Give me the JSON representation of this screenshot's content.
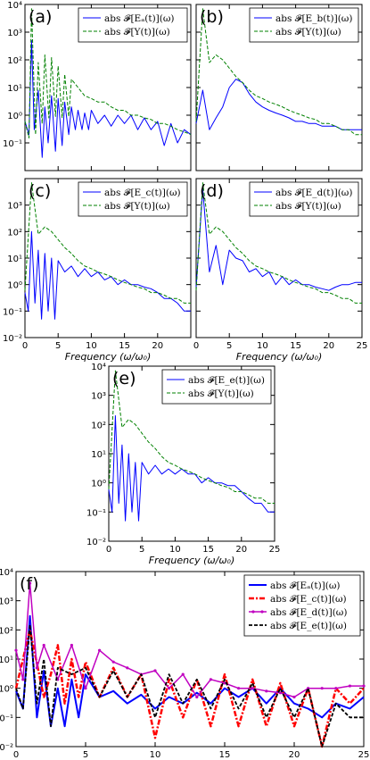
{
  "figure": {
    "xlabel_text": "Frequency",
    "xlabel_math": "(ω/ω₀)"
  },
  "colors": {
    "blue": "#0000ff",
    "green": "#008000",
    "red": "#ff0000",
    "magenta": "#c000c0",
    "black": "#000000"
  },
  "chart_data": [
    {
      "id": "a",
      "type": "line",
      "panel_label": "(a)",
      "xlabel": "",
      "y_scale": "log",
      "ylim": [
        0.01,
        10000
      ],
      "xlim": [
        0,
        25
      ],
      "y_ticks": [
        "10⁴",
        "10³",
        "10²",
        "10¹",
        "10⁰",
        "10⁻¹"
      ],
      "x_ticks": [],
      "legend": [
        "abs 𝓕[Eₐ(t)](ω)",
        "abs 𝓕[Y(t)](ω)"
      ],
      "series": [
        {
          "name": "abs 𝓕[Eₐ(t)](ω)",
          "style": "blue-solid",
          "x": [
            0,
            0.6,
            1,
            1.4,
            2,
            2.6,
            3,
            3.5,
            4,
            4.6,
            5,
            5.6,
            6,
            6.6,
            7,
            7.6,
            8,
            8.6,
            9,
            9.6,
            10,
            11,
            12,
            13,
            14,
            15,
            16,
            17,
            18,
            19,
            20,
            21,
            22,
            23,
            24,
            25
          ],
          "y": [
            0.6,
            0.2,
            500,
            0.3,
            8,
            0.03,
            2,
            0.1,
            5,
            0.05,
            4,
            0.08,
            3,
            0.2,
            2,
            0.3,
            1.5,
            0.3,
            1.2,
            0.3,
            1.5,
            0.5,
            1,
            0.4,
            1,
            0.5,
            1,
            0.3,
            0.8,
            0.3,
            0.6,
            0.08,
            0.5,
            0.1,
            0.3,
            0.2
          ]
        },
        {
          "name": "abs 𝓕[Y(t)](ω)",
          "style": "green-dashed",
          "x": [
            0,
            0.6,
            1,
            1.6,
            2,
            2.6,
            3,
            3.6,
            4,
            4.6,
            5,
            5.6,
            6,
            6.6,
            7,
            8,
            9,
            10,
            11,
            12,
            13,
            14,
            15,
            16,
            17,
            18,
            19,
            20,
            21,
            22,
            23,
            24,
            25
          ],
          "y": [
            0.6,
            0.15,
            7000,
            0.2,
            80,
            0.5,
            150,
            0.8,
            120,
            0.9,
            60,
            0.8,
            30,
            0.9,
            20,
            10,
            5,
            4,
            3,
            3,
            2,
            1.5,
            1.5,
            1,
            1,
            0.8,
            0.7,
            0.5,
            0.5,
            0.4,
            0.3,
            0.25,
            0.2
          ]
        }
      ]
    },
    {
      "id": "b",
      "type": "line",
      "panel_label": "(b)",
      "xlabel": "",
      "y_scale": "log",
      "ylim": [
        0.01,
        10000
      ],
      "xlim": [
        0,
        25
      ],
      "y_ticks": [],
      "x_ticks": [],
      "legend": [
        "abs 𝓕[E_b(t)](ω)",
        "abs 𝓕[Y(t)](ω)"
      ],
      "series": [
        {
          "name": "abs 𝓕[E_b(t)](ω)",
          "style": "blue-solid",
          "x": [
            0,
            1,
            2,
            3,
            4,
            5,
            6,
            7,
            8,
            9,
            10,
            11,
            12,
            13,
            14,
            15,
            16,
            17,
            18,
            19,
            20,
            21,
            22,
            23,
            24,
            25
          ],
          "y": [
            0.5,
            8,
            0.3,
            0.8,
            2,
            10,
            20,
            15,
            6,
            3,
            2,
            1.5,
            1.2,
            1,
            0.8,
            0.6,
            0.6,
            0.5,
            0.5,
            0.4,
            0.4,
            0.4,
            0.3,
            0.3,
            0.3,
            0.3
          ]
        },
        {
          "name": "abs 𝓕[Y(t)](ω)",
          "style": "green-dashed",
          "x": [
            0,
            1,
            2,
            3,
            4,
            5,
            6,
            7,
            8,
            9,
            10,
            11,
            12,
            13,
            14,
            15,
            16,
            17,
            18,
            19,
            20,
            21,
            22,
            23,
            24,
            25
          ],
          "y": [
            0.6,
            7000,
            80,
            150,
            100,
            50,
            25,
            15,
            8,
            5,
            4,
            3,
            2.5,
            2,
            1.5,
            1.2,
            1,
            0.8,
            0.7,
            0.5,
            0.5,
            0.4,
            0.3,
            0.3,
            0.2,
            0.2
          ]
        }
      ]
    },
    {
      "id": "c",
      "type": "line",
      "panel_label": "(c)",
      "xlabel": "Frequency (ω/ω₀)",
      "y_scale": "log",
      "ylim": [
        0.01,
        10000
      ],
      "xlim": [
        0,
        25
      ],
      "y_ticks": [
        "10³",
        "10²",
        "10¹",
        "10⁰",
        "10⁻¹",
        "10⁻²"
      ],
      "x_ticks": [
        "0",
        "5",
        "10",
        "15",
        "20"
      ],
      "legend": [
        "abs 𝓕[E_c(t)](ω)",
        "abs 𝓕[Y(t)](ω)"
      ],
      "series": [
        {
          "name": "abs 𝓕[E_c(t)](ω)",
          "style": "blue-solid",
          "x": [
            0,
            0.5,
            1,
            1.5,
            2,
            2.5,
            3,
            3.5,
            4,
            4.5,
            5,
            6,
            7,
            8,
            9,
            10,
            11,
            12,
            13,
            14,
            15,
            16,
            17,
            18,
            19,
            20,
            21,
            22,
            23,
            24,
            25
          ],
          "y": [
            0.5,
            0.1,
            100,
            0.2,
            20,
            0.05,
            15,
            0.1,
            10,
            0.05,
            8,
            3,
            5,
            2,
            4,
            2,
            3,
            1.5,
            2,
            1,
            1.5,
            1,
            1,
            0.8,
            0.7,
            0.5,
            0.3,
            0.3,
            0.2,
            0.1,
            0.1
          ]
        },
        {
          "name": "abs 𝓕[Y(t)](ω)",
          "style": "green-dashed",
          "x": [
            0,
            1,
            2,
            3,
            4,
            5,
            6,
            7,
            8,
            9,
            10,
            11,
            12,
            13,
            14,
            15,
            16,
            17,
            18,
            19,
            20,
            21,
            22,
            23,
            24,
            25
          ],
          "y": [
            0.6,
            7000,
            80,
            150,
            100,
            50,
            25,
            15,
            8,
            5,
            4,
            3,
            2.5,
            2,
            1.5,
            1.2,
            1,
            0.8,
            0.7,
            0.5,
            0.5,
            0.4,
            0.3,
            0.3,
            0.2,
            0.2
          ]
        }
      ]
    },
    {
      "id": "d",
      "type": "line",
      "panel_label": "(d)",
      "xlabel": "Frequency (ω/ω₀)",
      "y_scale": "log",
      "ylim": [
        0.01,
        10000
      ],
      "xlim": [
        0,
        25
      ],
      "y_ticks": [],
      "x_ticks": [
        "0",
        "5",
        "10",
        "15",
        "20",
        "25"
      ],
      "legend": [
        "abs 𝓕[E_d(t)](ω)",
        "abs 𝓕[Y(t)](ω)"
      ],
      "series": [
        {
          "name": "abs 𝓕[E_d(t)](ω)",
          "style": "blue-solid",
          "x": [
            0,
            1,
            2,
            3,
            4,
            5,
            6,
            7,
            8,
            9,
            10,
            11,
            12,
            13,
            14,
            15,
            16,
            17,
            18,
            19,
            20,
            21,
            22,
            23,
            24,
            25
          ],
          "y": [
            0.8,
            4000,
            3,
            30,
            1,
            20,
            10,
            8,
            3,
            4,
            2,
            3,
            1,
            2,
            1,
            1.5,
            1,
            1,
            0.8,
            0.7,
            0.6,
            0.8,
            1,
            1,
            1.2,
            1.2
          ]
        },
        {
          "name": "abs 𝓕[Y(t)](ω)",
          "style": "green-dashed",
          "x": [
            0,
            1,
            2,
            3,
            4,
            5,
            6,
            7,
            8,
            9,
            10,
            11,
            12,
            13,
            14,
            15,
            16,
            17,
            18,
            19,
            20,
            21,
            22,
            23,
            24,
            25
          ],
          "y": [
            0.6,
            7000,
            80,
            150,
            100,
            50,
            25,
            15,
            8,
            5,
            4,
            3,
            2.5,
            2,
            1.5,
            1.2,
            1,
            0.8,
            0.7,
            0.5,
            0.5,
            0.4,
            0.3,
            0.3,
            0.2,
            0.2
          ]
        }
      ]
    },
    {
      "id": "e",
      "type": "line",
      "panel_label": "(e)",
      "xlabel": "Frequency (ω/ω₀)",
      "y_scale": "log",
      "ylim": [
        0.01,
        10000
      ],
      "xlim": [
        0,
        25
      ],
      "y_ticks": [
        "10⁴",
        "10³",
        "10²",
        "10¹",
        "10⁰",
        "10⁻¹",
        "10⁻²"
      ],
      "x_ticks": [
        "0",
        "5",
        "10",
        "15",
        "20",
        "25"
      ],
      "legend": [
        "abs 𝓕[E_e(t)](ω)",
        "abs 𝓕[Y(t)](ω)"
      ],
      "series": [
        {
          "name": "abs 𝓕[E_e(t)](ω)",
          "style": "blue-solid",
          "x": [
            0,
            0.5,
            1,
            1.5,
            2,
            2.5,
            3,
            3.5,
            4,
            4.5,
            5,
            6,
            7,
            8,
            9,
            10,
            11,
            12,
            13,
            14,
            15,
            16,
            17,
            18,
            19,
            20,
            21,
            22,
            23,
            24,
            25
          ],
          "y": [
            0.6,
            0.1,
            200,
            0.2,
            20,
            0.05,
            10,
            0.1,
            5,
            0.05,
            5,
            2,
            4,
            2,
            3,
            2,
            3,
            2,
            2,
            1,
            1.5,
            1,
            1,
            0.8,
            0.8,
            0.5,
            0.3,
            0.2,
            0.2,
            0.1,
            0.1
          ]
        },
        {
          "name": "abs 𝓕[Y(t)](ω)",
          "style": "green-dashed",
          "x": [
            0,
            1,
            2,
            3,
            4,
            5,
            6,
            7,
            8,
            9,
            10,
            11,
            12,
            13,
            14,
            15,
            16,
            17,
            18,
            19,
            20,
            21,
            22,
            23,
            24,
            25
          ],
          "y": [
            0.6,
            7000,
            80,
            150,
            100,
            50,
            25,
            15,
            8,
            5,
            4,
            3,
            2.5,
            2,
            1.5,
            1.2,
            1,
            0.8,
            0.7,
            0.5,
            0.5,
            0.4,
            0.3,
            0.3,
            0.2,
            0.2
          ]
        }
      ]
    },
    {
      "id": "f",
      "type": "line",
      "panel_label": "(f)",
      "xlabel": "Frequency (ω/ω₀)",
      "y_scale": "log",
      "ylim": [
        0.01,
        10000
      ],
      "xlim": [
        0,
        25
      ],
      "y_ticks": [
        "10⁴",
        "10³",
        "10²",
        "10¹",
        "10⁰",
        "10⁻¹",
        "10⁻²"
      ],
      "x_ticks": [
        "0",
        "5",
        "10",
        "15",
        "20",
        "25"
      ],
      "legend": [
        "abs 𝓕[Eₐ(t)](ω)",
        "abs 𝓕[E_c(t)](ω)",
        "abs 𝓕[E_d(t)](ω)",
        "abs 𝓕[E_e(t)](ω)"
      ],
      "series": [
        {
          "name": "abs 𝓕[Eₐ(t)](ω)",
          "style": "blue-solid-thick",
          "x": [
            0,
            0.5,
            1,
            1.5,
            2,
            2.5,
            3,
            3.5,
            4,
            4.5,
            5,
            6,
            7,
            8,
            9,
            10,
            11,
            12,
            13,
            14,
            15,
            16,
            17,
            18,
            19,
            20,
            21,
            22,
            23,
            24,
            25
          ],
          "y": [
            0.8,
            0.2,
            300,
            0.1,
            4,
            0.05,
            1,
            0.05,
            2,
            0.1,
            3,
            0.5,
            0.8,
            0.3,
            0.6,
            0.2,
            0.5,
            0.3,
            0.7,
            0.3,
            1,
            0.5,
            1,
            0.3,
            1,
            0.3,
            0.2,
            0.1,
            0.3,
            0.2,
            0.5
          ]
        },
        {
          "name": "abs 𝓕[E_c(t)](ω)",
          "style": "red-dashdot",
          "x": [
            0,
            1,
            2,
            2.5,
            3,
            3.5,
            4,
            4.5,
            5,
            6,
            7,
            8,
            9,
            10,
            11,
            12,
            13,
            14,
            15,
            16,
            17,
            18,
            19,
            20,
            21,
            22,
            23,
            24,
            25
          ],
          "y": [
            1,
            100,
            0.5,
            3,
            30,
            0.3,
            10,
            0.5,
            8,
            0.5,
            5,
            0.5,
            3,
            0.02,
            2,
            0.1,
            2,
            0.05,
            3,
            0.05,
            2,
            0.05,
            1.5,
            0.05,
            1,
            0.01,
            1,
            0.3,
            1
          ]
        },
        {
          "name": "abs 𝓕[E_d(t)](ω)",
          "style": "magenta-marker",
          "x": [
            0,
            0.5,
            1,
            1.5,
            2,
            3,
            4,
            5,
            6,
            7,
            8,
            9,
            10,
            11,
            12,
            13,
            14,
            15,
            16,
            17,
            18,
            19,
            20,
            21,
            22,
            23,
            24,
            25
          ],
          "y": [
            20,
            2,
            4000,
            5,
            30,
            2,
            30,
            1,
            20,
            8,
            5,
            3,
            4,
            1,
            3,
            0.5,
            2,
            1.5,
            1,
            1,
            0.8,
            0.7,
            0.5,
            1,
            1,
            1,
            1.2,
            1.2
          ]
        },
        {
          "name": "abs 𝓕[E_e(t)](ω)",
          "style": "black-dashed",
          "x": [
            0,
            0.5,
            1,
            1.5,
            2,
            2.5,
            3,
            4,
            5,
            6,
            7,
            8,
            9,
            10,
            11,
            12,
            13,
            14,
            15,
            16,
            17,
            18,
            19,
            20,
            21,
            22,
            23,
            24,
            25
          ],
          "y": [
            1,
            0.2,
            150,
            0.3,
            10,
            0.05,
            5,
            3,
            5,
            0.5,
            4,
            0.5,
            3,
            0.1,
            3,
            0.3,
            2,
            0.2,
            2,
            0.2,
            1.5,
            0.1,
            1,
            0.1,
            1,
            0.01,
            0.3,
            0.1,
            0.1
          ]
        }
      ]
    }
  ]
}
